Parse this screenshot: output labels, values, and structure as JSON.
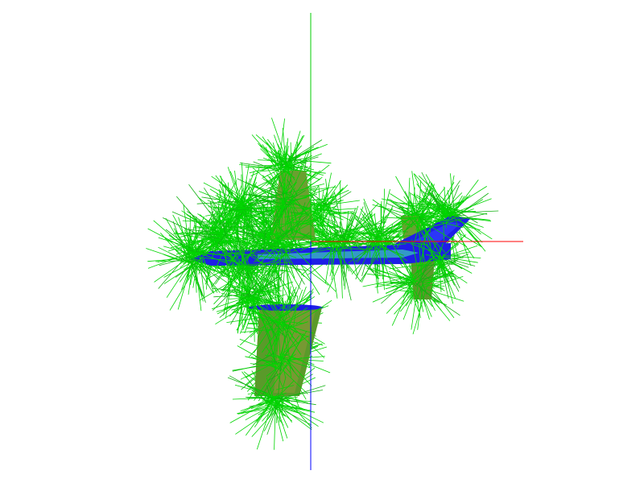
{
  "scene": {
    "background": "#ffffff",
    "colors": {
      "normals": "#00d400",
      "normals_dark": "#10b010",
      "surface": "#1e1ee6",
      "surface_highlight": "#38b8c0",
      "surface_tan": "#9a8a3c",
      "axis_x": "#ff0000",
      "axis_y": "#00cc00",
      "axis_z": "#0000ff"
    },
    "axes": [
      "x-axis",
      "y-axis",
      "z-axis"
    ],
    "model": "aircraft-mesh",
    "overlay": "surface-normals"
  }
}
